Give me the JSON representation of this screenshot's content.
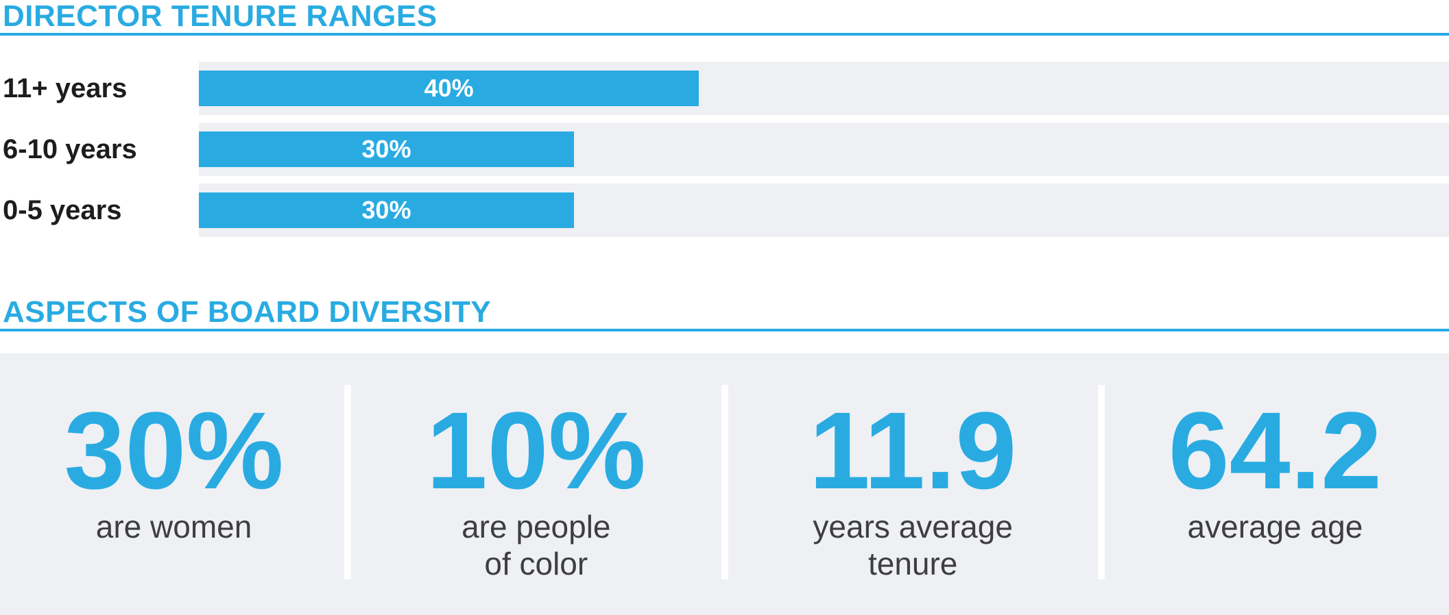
{
  "colors": {
    "accent_blue": "#29abe2",
    "track_gray": "#eef0f4",
    "panel_gray": "#eef0f4",
    "row_label_text": "#1d1d1f",
    "stat_label_text": "#3e3e40",
    "bar_value_text": "#ffffff"
  },
  "tenure_section": {
    "title": "DIRECTOR TENURE RANGES"
  },
  "chart_data": {
    "type": "bar",
    "orientation": "horizontal",
    "title": "DIRECTOR TENURE RANGES",
    "categories": [
      "11+ years",
      "6-10 years",
      "0-5 years"
    ],
    "values": [
      40,
      30,
      30
    ],
    "value_labels": [
      "40%",
      "30%",
      "30%"
    ],
    "xlim": [
      0,
      100
    ],
    "grid": false,
    "bar_color": "#29abe2",
    "track_color": "#eef0f4",
    "value_label_position": "centered-inside-bar"
  },
  "diversity_section": {
    "title": "ASPECTS OF BOARD DIVERSITY",
    "stats": [
      {
        "value": "30%",
        "label": "are women"
      },
      {
        "value": "10%",
        "label": "are people\nof color"
      },
      {
        "value": "11.9",
        "label": "years average\ntenure"
      },
      {
        "value": "64.2",
        "label": "average age"
      }
    ]
  }
}
